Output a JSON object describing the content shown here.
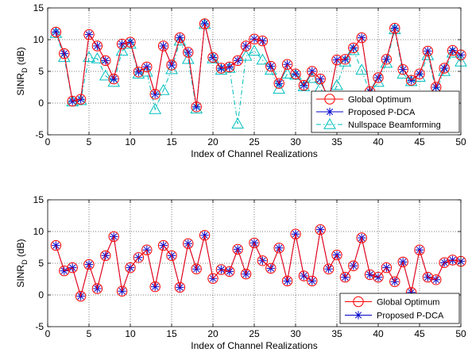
{
  "chart_data": [
    {
      "type": "line",
      "xlabel": "Index of Channel Realizations",
      "ylabel_main": "SINR",
      "ylabel_sub": "D",
      "ylabel_unit": " (dB)",
      "xlim": [
        0,
        50
      ],
      "ylim": [
        -5,
        15
      ],
      "xticks": [
        0,
        5,
        10,
        15,
        20,
        25,
        30,
        35,
        40,
        45,
        50
      ],
      "yticks": [
        -5,
        0,
        5,
        10,
        15
      ],
      "grid": true,
      "legend_position": "bottom-right",
      "x": [
        1,
        2,
        3,
        4,
        5,
        6,
        7,
        8,
        9,
        10,
        11,
        12,
        13,
        14,
        15,
        16,
        17,
        18,
        19,
        20,
        21,
        22,
        23,
        24,
        25,
        26,
        27,
        28,
        29,
        30,
        31,
        32,
        33,
        34,
        35,
        36,
        37,
        38,
        39,
        40,
        41,
        42,
        43,
        44,
        45,
        46,
        47,
        48,
        49,
        50
      ],
      "series": [
        {
          "name": "Global Optimum",
          "color": "#ff0000",
          "marker": "circle",
          "line": "solid",
          "values": [
            11.2,
            7.8,
            0.3,
            0.6,
            10.8,
            9.0,
            6.7,
            3.8,
            9.3,
            9.6,
            4.9,
            5.7,
            1.4,
            9.0,
            6.0,
            10.3,
            8.0,
            -0.6,
            12.5,
            7.2,
            5.5,
            5.7,
            6.7,
            9.0,
            10.1,
            9.8,
            5.8,
            3.1,
            6.1,
            4.6,
            2.8,
            5.0,
            3.8,
            0.4,
            6.8,
            6.9,
            8.7,
            10.3,
            1.8,
            4.0,
            6.9,
            11.8,
            5.3,
            3.6,
            4.6,
            8.2,
            2.5,
            5.5,
            8.3,
            7.6
          ]
        },
        {
          "name": "Proposed P-DCA",
          "color": "#0000cc",
          "marker": "star",
          "line": "solid",
          "values": [
            11.2,
            7.8,
            0.3,
            0.6,
            10.8,
            9.0,
            6.7,
            3.8,
            9.3,
            9.6,
            4.9,
            5.7,
            1.4,
            9.0,
            6.0,
            10.3,
            8.0,
            -0.6,
            12.5,
            7.2,
            5.5,
            5.7,
            6.7,
            9.0,
            10.1,
            9.8,
            5.8,
            3.1,
            6.1,
            4.6,
            2.8,
            5.0,
            3.8,
            0.4,
            6.8,
            6.9,
            8.7,
            10.3,
            1.8,
            4.0,
            6.9,
            11.8,
            5.3,
            3.6,
            4.6,
            8.2,
            2.5,
            5.5,
            8.3,
            7.6
          ]
        },
        {
          "name": "Nullspace Beamforming",
          "color": "#00bfbf",
          "marker": "triangle",
          "line": "dashdot",
          "values": [
            11.0,
            7.2,
            0.2,
            0.4,
            7.2,
            7.0,
            4.3,
            3.3,
            8.2,
            9.3,
            4.6,
            4.9,
            -1.0,
            2.0,
            5.3,
            9.8,
            6.9,
            -0.9,
            12.4,
            7.0,
            5.2,
            5.5,
            -3.3,
            7.4,
            8.2,
            6.8,
            5.2,
            2.2,
            4.6,
            4.4,
            2.6,
            3.9,
            2.4,
            -0.2,
            2.8,
            6.5,
            8.3,
            5.2,
            1.6,
            3.3,
            6.3,
            11.6,
            4.6,
            3.4,
            4.1,
            7.5,
            2.0,
            5.0,
            7.9,
            6.5
          ]
        }
      ]
    },
    {
      "type": "line",
      "xlabel": "Index of Channel Realizations",
      "ylabel_main": "SINR",
      "ylabel_sub": "D",
      "ylabel_unit": " (dB)",
      "xlim": [
        0,
        50
      ],
      "ylim": [
        -5,
        15
      ],
      "xticks": [
        0,
        5,
        10,
        15,
        20,
        25,
        30,
        35,
        40,
        45,
        50
      ],
      "yticks": [
        -5,
        0,
        5,
        10,
        15
      ],
      "grid": true,
      "legend_position": "bottom-right",
      "x": [
        1,
        2,
        3,
        4,
        5,
        6,
        7,
        8,
        9,
        10,
        11,
        12,
        13,
        14,
        15,
        16,
        17,
        18,
        19,
        20,
        21,
        22,
        23,
        24,
        25,
        26,
        27,
        28,
        29,
        30,
        31,
        32,
        33,
        34,
        35,
        36,
        37,
        38,
        39,
        40,
        41,
        42,
        43,
        44,
        45,
        46,
        47,
        48,
        49,
        50
      ],
      "series": [
        {
          "name": "Global Optimum",
          "color": "#ff0000",
          "marker": "circle",
          "line": "solid",
          "values": [
            7.8,
            3.8,
            4.3,
            -0.2,
            4.8,
            1.0,
            6.2,
            9.2,
            0.6,
            4.3,
            5.9,
            7.1,
            1.3,
            7.8,
            6.2,
            1.2,
            8.1,
            4.1,
            9.4,
            2.6,
            4.0,
            3.7,
            7.2,
            3.3,
            8.2,
            5.4,
            4.2,
            7.4,
            2.2,
            9.6,
            3.0,
            2.2,
            10.3,
            4.1,
            6.3,
            2.8,
            4.6,
            9.0,
            3.2,
            2.8,
            4.3,
            2.1,
            5.2,
            0.4,
            7.1,
            2.8,
            2.4,
            5.1,
            5.5,
            5.3
          ]
        },
        {
          "name": "Proposed P-DCA",
          "color": "#0000cc",
          "marker": "star",
          "line": "solid",
          "values": [
            7.8,
            3.8,
            4.3,
            -0.2,
            4.8,
            1.0,
            6.2,
            9.2,
            0.6,
            4.3,
            5.9,
            7.1,
            1.3,
            7.8,
            6.2,
            1.2,
            8.1,
            4.1,
            9.4,
            2.6,
            4.0,
            3.7,
            7.2,
            3.3,
            8.2,
            5.4,
            4.2,
            7.4,
            2.2,
            9.6,
            3.0,
            2.2,
            10.3,
            4.1,
            6.3,
            2.8,
            4.6,
            9.0,
            3.2,
            2.8,
            4.3,
            2.1,
            5.2,
            0.4,
            7.1,
            2.8,
            2.4,
            5.1,
            5.5,
            5.3
          ]
        }
      ]
    }
  ]
}
